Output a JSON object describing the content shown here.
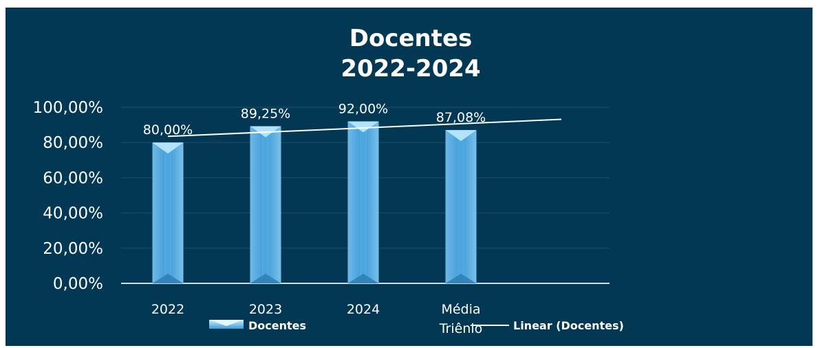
{
  "chart_data": {
    "type": "bar",
    "title_lines": [
      "Docentes",
      "2022-2024"
    ],
    "categories": [
      [
        "2022"
      ],
      [
        "2023"
      ],
      [
        "2024"
      ],
      [
        "Média",
        "Triênio"
      ]
    ],
    "series": [
      {
        "name": "Docentes",
        "values": [
          80.0,
          89.25,
          92.0,
          87.08
        ],
        "labels": [
          "80,00%",
          "89,25%",
          "92,00%",
          "87,08%"
        ]
      }
    ],
    "trendline": {
      "name": "Linear (Docentes)",
      "type": "linear"
    },
    "ylim": [
      0,
      100
    ],
    "yticks": [
      0,
      20,
      40,
      60,
      80,
      100
    ],
    "ytick_labels": [
      "0,00%",
      "20,00%",
      "40,00%",
      "60,00%",
      "80,00%",
      "100,00%"
    ],
    "grid": true,
    "legend": [
      "Docentes",
      "Linear (Docentes)"
    ],
    "legend_placement": "bottom",
    "colors": {
      "background": "#033854",
      "bar": "#4aa3dc",
      "bar_top": "#b3e3fb",
      "trend": "#ffffff",
      "text": "#ffffff",
      "grid": "#1d4f6b"
    }
  }
}
